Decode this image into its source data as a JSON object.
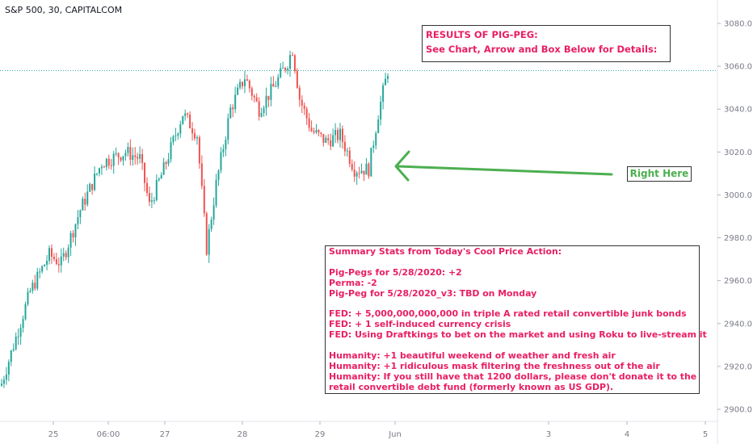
{
  "symbol_label": "S&P 500, 30, CAPITALCOM",
  "annotations": {
    "results_title": "RESULTS OF PIG-PEG:",
    "results_subtitle": "See Chart, Arrow and Box Below for Details:",
    "arrow_label": "Right Here",
    "summary_lines": [
      "Summary Stats from Today's Cool Price Action:",
      "",
      "Pig-Pegs for 5/28/2020: +2",
      "Perma: -2",
      "Pig-Peg for 5/28/2020_v3: TBD on Monday",
      "",
      "FED: + 5,000,000,000,000 in triple A rated retail convertible junk bonds",
      "FED: + 1 self-induced currency crisis",
      "FED: Using Draftkings to bet on the market and using Roku to live-stream it",
      "",
      "Humanity: +1 beautiful weekend of weather and fresh air",
      "Humanity: +1 ridiculous mask filtering the freshness out of the air",
      "Humanity: If you still have that 1200 dollars, please don't donate it to the",
      "retail convertible debt fund (formerly known as US GDP)."
    ]
  },
  "colors": {
    "up": "#26a69a",
    "down": "#ef5350",
    "annotation_text": "#e91e63",
    "arrow": "#4caf50",
    "price_line": "#26a69a"
  },
  "chart_data": {
    "type": "candlestick",
    "title": "S&P 500, 30, CAPITALCOM",
    "price_axis": {
      "ticks": [
        2900,
        2920,
        2940,
        2960,
        2980,
        3000,
        3020,
        3040,
        3060,
        3080
      ],
      "labels": [
        "2900.0",
        "2920.0",
        "2940.0",
        "2960.0",
        "2980.0",
        "3000.0",
        "3020.0",
        "3040.0",
        "3060.0",
        "3080.0"
      ]
    },
    "time_axis": {
      "labels": [
        "25",
        "06:00",
        "27",
        "28",
        "29",
        "Jun",
        "3",
        "4",
        "5"
      ]
    },
    "current_price": 3058,
    "key_points": [
      {
        "x": 0,
        "y": 2912
      },
      {
        "x": 12,
        "y": 2955
      },
      {
        "x": 20,
        "y": 2972
      },
      {
        "x": 25,
        "y": 2968
      },
      {
        "x": 33,
        "y": 2993
      },
      {
        "x": 42,
        "y": 3015
      },
      {
        "x": 52,
        "y": 3020
      },
      {
        "x": 58,
        "y": 3017
      },
      {
        "x": 62,
        "y": 2995
      },
      {
        "x": 68,
        "y": 3012
      },
      {
        "x": 76,
        "y": 3038
      },
      {
        "x": 82,
        "y": 3028
      },
      {
        "x": 86,
        "y": 2975
      },
      {
        "x": 90,
        "y": 3005
      },
      {
        "x": 96,
        "y": 3040
      },
      {
        "x": 102,
        "y": 3055
      },
      {
        "x": 108,
        "y": 3040
      },
      {
        "x": 114,
        "y": 3050
      },
      {
        "x": 120,
        "y": 3062
      },
      {
        "x": 122,
        "y": 3068
      },
      {
        "x": 125,
        "y": 3045
      },
      {
        "x": 130,
        "y": 3030
      },
      {
        "x": 136,
        "y": 3025
      },
      {
        "x": 142,
        "y": 3028
      },
      {
        "x": 148,
        "y": 3012
      },
      {
        "x": 154,
        "y": 3012
      },
      {
        "x": 158,
        "y": 3038
      },
      {
        "x": 162,
        "y": 3058
      }
    ]
  }
}
